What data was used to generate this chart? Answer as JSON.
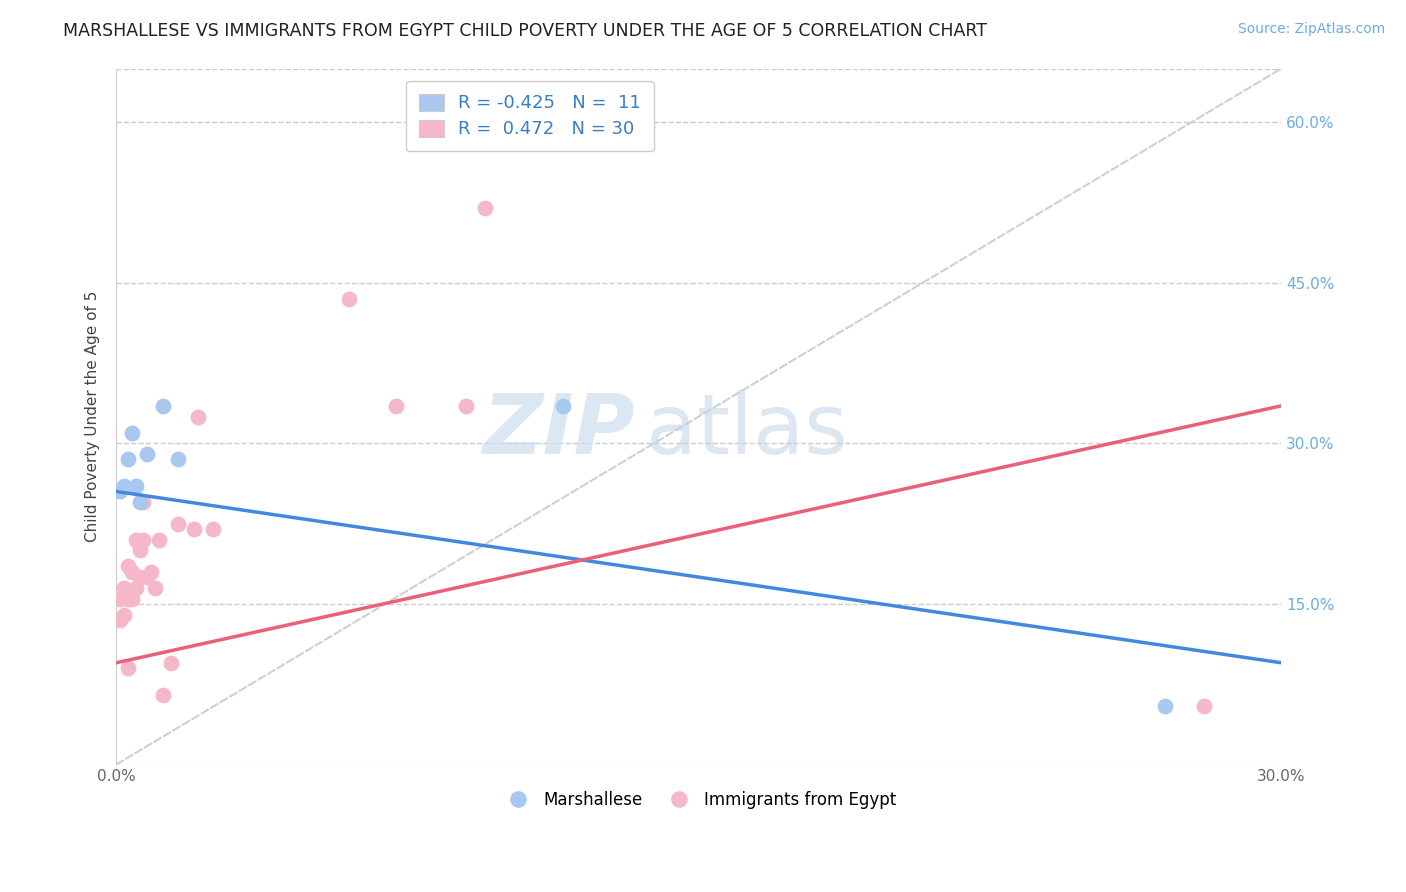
{
  "title": "MARSHALLESE VS IMMIGRANTS FROM EGYPT CHILD POVERTY UNDER THE AGE OF 5 CORRELATION CHART",
  "source": "Source: ZipAtlas.com",
  "ylabel": "Child Poverty Under the Age of 5",
  "xlabel": "",
  "xlim": [
    0.0,
    0.3
  ],
  "ylim": [
    0.0,
    0.65
  ],
  "xticks": [
    0.0,
    0.05,
    0.1,
    0.15,
    0.2,
    0.25,
    0.3
  ],
  "xtick_labels": [
    "0.0%",
    "",
    "",
    "",
    "",
    "",
    "30.0%"
  ],
  "yticks_right": [
    0.15,
    0.3,
    0.45,
    0.6
  ],
  "ytick_right_labels": [
    "15.0%",
    "30.0%",
    "45.0%",
    "60.0%"
  ],
  "grid_yticks": [
    0.15,
    0.3,
    0.45,
    0.6
  ],
  "blue_color": "#a8c8f0",
  "pink_color": "#f5b8c8",
  "blue_line_color": "#4488dd",
  "pink_line_color": "#e8607a",
  "diagonal_color": "#d0d0d0",
  "legend_r_blue": "-0.425",
  "legend_n_blue": "11",
  "legend_r_pink": "0.472",
  "legend_n_pink": "30",
  "blue_scatter_x": [
    0.001,
    0.002,
    0.003,
    0.004,
    0.005,
    0.006,
    0.008,
    0.012,
    0.016,
    0.115,
    0.27
  ],
  "blue_scatter_y": [
    0.255,
    0.26,
    0.285,
    0.31,
    0.26,
    0.245,
    0.29,
    0.335,
    0.285,
    0.335,
    0.055
  ],
  "pink_scatter_x": [
    0.001,
    0.001,
    0.002,
    0.002,
    0.003,
    0.003,
    0.004,
    0.004,
    0.005,
    0.005,
    0.006,
    0.006,
    0.007,
    0.007,
    0.008,
    0.009,
    0.01,
    0.011,
    0.012,
    0.014,
    0.016,
    0.02,
    0.021,
    0.025,
    0.06,
    0.072,
    0.09,
    0.095,
    0.28,
    0.003
  ],
  "pink_scatter_y": [
    0.135,
    0.155,
    0.14,
    0.165,
    0.185,
    0.155,
    0.155,
    0.18,
    0.21,
    0.165,
    0.175,
    0.2,
    0.21,
    0.245,
    0.175,
    0.18,
    0.165,
    0.21,
    0.065,
    0.095,
    0.225,
    0.22,
    0.325,
    0.22,
    0.435,
    0.335,
    0.335,
    0.52,
    0.055,
    0.09
  ],
  "blue_trend_x": [
    0.0,
    0.3
  ],
  "blue_trend_y": [
    0.255,
    0.095
  ],
  "pink_trend_x": [
    0.0,
    0.3
  ],
  "pink_trend_y": [
    0.095,
    0.335
  ],
  "marker_size": 130,
  "title_fontsize": 12.5,
  "label_fontsize": 11,
  "tick_fontsize": 11,
  "source_fontsize": 10,
  "legend_fontsize": 13
}
